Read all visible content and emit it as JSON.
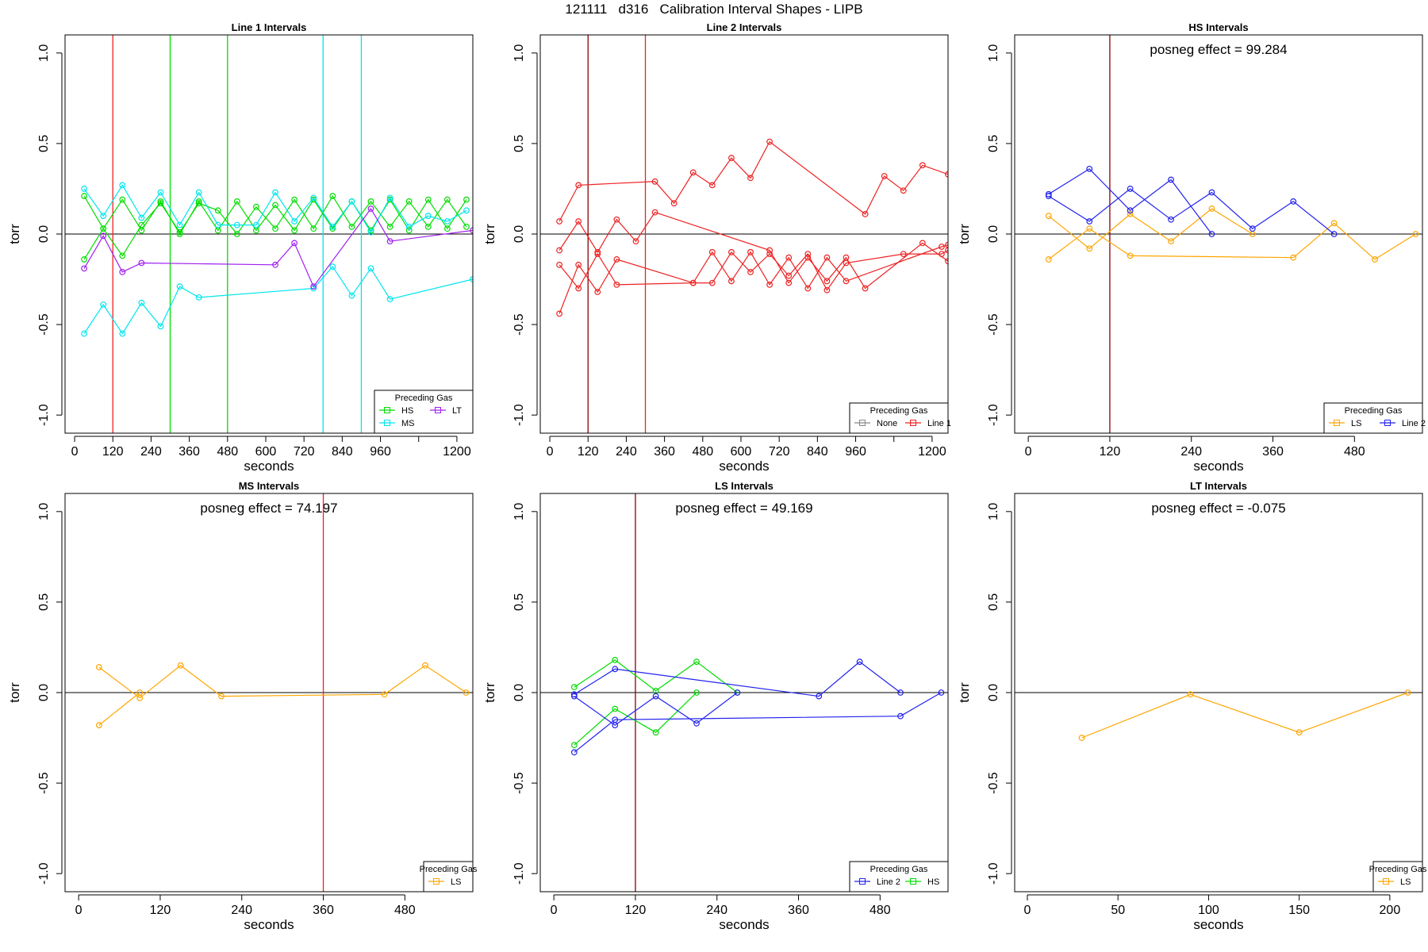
{
  "figure_title": "121111   d316   Calibration Interval Shapes - LIPB",
  "colors": {
    "HS": "#00dd00",
    "MS": "#00e5ee",
    "LT": "#a020f0",
    "Line 1": "#ee2222",
    "Line 2": "#2222ee",
    "LS": "#ffa500",
    "None": "#888888",
    "marker": "#8b0000"
  },
  "chart_data": [
    {
      "id": "line1",
      "type": "line",
      "title": "Line 1 Intervals",
      "xlabel": "seconds",
      "ylabel": "torr",
      "xlim": [
        -30,
        1250
      ],
      "ylim": [
        -1.1,
        1.1
      ],
      "xticks": [
        0,
        120,
        240,
        360,
        480,
        600,
        720,
        840,
        960,
        1080,
        1200
      ],
      "xtick_labels": [
        "0",
        "120",
        "240",
        "360",
        "480",
        "600",
        "720",
        "840",
        "960",
        "",
        "1200"
      ],
      "yticks": [
        -1.0,
        -0.5,
        0.0,
        0.5,
        1.0
      ],
      "ytick_labels": [
        "-1.0",
        "-0.5",
        "0.0",
        "0.5",
        "1.0"
      ],
      "hline": 0,
      "annotation": "",
      "vlines": [
        {
          "x": 120,
          "color": "Line 1"
        },
        {
          "x": 300,
          "color": "HS"
        },
        {
          "x": 480,
          "color": "HS"
        },
        {
          "x": 780,
          "color": "MS"
        },
        {
          "x": 900,
          "color": "MS"
        }
      ],
      "legend": {
        "title": "Preceding Gas",
        "position": "bottom-right",
        "cols": 2,
        "entries": [
          {
            "label": "HS",
            "color": "HS"
          },
          {
            "label": "LT",
            "color": "LT"
          },
          {
            "label": "MS",
            "color": "MS"
          }
        ]
      },
      "series": [
        {
          "color": "HS",
          "x": [
            30,
            90,
            150,
            210,
            270,
            330,
            390,
            450,
            510,
            570,
            630,
            690,
            750,
            810,
            870,
            930,
            990,
            1050,
            1110,
            1170,
            1230
          ],
          "y": [
            0.21,
            0.03,
            0.19,
            0.02,
            0.18,
            0.0,
            0.18,
            0.02,
            0.18,
            0.02,
            0.16,
            0.02,
            0.19,
            0.03,
            0.18,
            0.02,
            0.19,
            0.02,
            0.19,
            0.03,
            0.19
          ]
        },
        {
          "color": "HS",
          "x": [
            30,
            90,
            150,
            210,
            270,
            330,
            390,
            450,
            510,
            570,
            630,
            690,
            750,
            810,
            870,
            930,
            990,
            1050,
            1110,
            1170,
            1230
          ],
          "y": [
            -0.14,
            0.03,
            -0.12,
            0.05,
            0.17,
            0.01,
            0.17,
            0.13,
            0.0,
            0.15,
            0.03,
            0.19,
            0.03,
            0.21,
            0.04,
            0.18,
            0.04,
            0.18,
            0.04,
            0.19,
            0.04
          ]
        },
        {
          "color": "MS",
          "x": [
            30,
            90,
            150,
            210,
            270,
            330,
            390,
            450,
            510,
            570,
            630,
            690,
            750,
            810,
            870,
            930,
            990,
            1050,
            1110,
            1170,
            1230
          ],
          "y": [
            0.25,
            0.1,
            0.27,
            0.09,
            0.23,
            0.05,
            0.23,
            0.05,
            0.05,
            0.05,
            0.23,
            0.07,
            0.2,
            0.04,
            0.18,
            0.01,
            0.2,
            0.04,
            0.1,
            0.07,
            0.13
          ]
        },
        {
          "color": "MS",
          "x": [
            30,
            90,
            150,
            210,
            270,
            330,
            390,
            750,
            810,
            870,
            930,
            990,
            1250
          ],
          "y": [
            -0.55,
            -0.39,
            -0.55,
            -0.38,
            -0.51,
            -0.29,
            -0.35,
            -0.3,
            -0.18,
            -0.34,
            -0.19,
            -0.36,
            -0.25
          ]
        },
        {
          "color": "LT",
          "x": [
            30,
            90,
            150,
            210,
            630,
            690,
            750,
            930,
            990,
            1250
          ],
          "y": [
            -0.19,
            -0.01,
            -0.21,
            -0.16,
            -0.17,
            -0.05,
            -0.29,
            0.14,
            -0.04,
            0.02
          ]
        }
      ]
    },
    {
      "id": "line2",
      "type": "line",
      "title": "Line 2 Intervals",
      "xlabel": "seconds",
      "ylabel": "torr",
      "xlim": [
        -30,
        1250
      ],
      "ylim": [
        -1.1,
        1.1
      ],
      "xticks": [
        0,
        120,
        240,
        360,
        480,
        600,
        720,
        840,
        960,
        1080,
        1200
      ],
      "xtick_labels": [
        "0",
        "120",
        "240",
        "360",
        "480",
        "600",
        "720",
        "840",
        "960",
        "",
        "1200"
      ],
      "yticks": [
        -1.0,
        -0.5,
        0.0,
        0.5,
        1.0
      ],
      "ytick_labels": [
        "-1.0",
        "-0.5",
        "0.0",
        "0.5",
        "1.0"
      ],
      "hline": 0,
      "annotation": "",
      "vlines": [
        {
          "x": 120,
          "color": "marker"
        },
        {
          "x": 300,
          "color": "Line 1"
        }
      ],
      "legend": {
        "title": "Preceding Gas",
        "position": "bottom-right",
        "cols": 2,
        "entries": [
          {
            "label": "None",
            "color": "None"
          },
          {
            "label": "Line 1",
            "color": "Line 1"
          }
        ]
      },
      "series": [
        {
          "color": "Line 1",
          "x": [
            30,
            90,
            330,
            390,
            450,
            510,
            570,
            630,
            690,
            990,
            1050,
            1110,
            1170,
            1250
          ],
          "y": [
            0.07,
            0.27,
            0.29,
            0.17,
            0.34,
            0.27,
            0.42,
            0.31,
            0.51,
            0.11,
            0.32,
            0.24,
            0.38,
            0.33
          ]
        },
        {
          "color": "Line 1",
          "x": [
            30,
            90,
            150,
            210,
            270,
            330,
            690,
            750,
            810,
            870,
            930,
            990,
            1170,
            1250
          ],
          "y": [
            -0.09,
            0.07,
            -0.1,
            0.08,
            -0.04,
            0.12,
            -0.09,
            -0.27,
            -0.13,
            -0.26,
            -0.13,
            -0.3,
            -0.05,
            -0.15
          ]
        },
        {
          "color": "Line 1",
          "x": [
            30,
            90,
            150,
            210,
            450,
            510,
            570,
            630,
            690,
            750,
            810,
            870,
            930,
            1230,
            1250
          ],
          "y": [
            -0.44,
            -0.17,
            -0.32,
            -0.14,
            -0.27,
            -0.1,
            -0.26,
            -0.1,
            -0.28,
            -0.13,
            -0.3,
            -0.13,
            -0.26,
            -0.07,
            -0.06
          ]
        },
        {
          "color": "Line 1",
          "x": [
            30,
            90,
            150,
            210,
            450,
            510,
            570,
            630,
            690,
            750,
            810,
            870,
            930,
            1110,
            1230,
            1250
          ],
          "y": [
            -0.17,
            -0.3,
            -0.11,
            -0.28,
            -0.27,
            -0.27,
            -0.1,
            -0.21,
            -0.11,
            -0.23,
            -0.11,
            -0.31,
            -0.16,
            -0.11,
            -0.11,
            -0.09
          ]
        }
      ]
    },
    {
      "id": "hs",
      "type": "line",
      "title": "HS Intervals",
      "xlabel": "seconds",
      "ylabel": "torr",
      "xlim": [
        -20,
        580
      ],
      "ylim": [
        -1.1,
        1.1
      ],
      "xticks": [
        0,
        120,
        240,
        360,
        480
      ],
      "xtick_labels": [
        "0",
        "120",
        "240",
        "360",
        "480"
      ],
      "yticks": [
        -1.0,
        -0.5,
        0.0,
        0.5,
        1.0
      ],
      "ytick_labels": [
        "-1.0",
        "-0.5",
        "0.0",
        "0.5",
        "1.0"
      ],
      "hline": 0,
      "annotation": "posneg effect = 99.284",
      "vlines": [
        {
          "x": 120,
          "color": "marker"
        }
      ],
      "legend": {
        "title": "Preceding Gas",
        "position": "bottom-right",
        "cols": 2,
        "entries": [
          {
            "label": "LS",
            "color": "LS"
          },
          {
            "label": "Line 2",
            "color": "Line 2"
          }
        ]
      },
      "series": [
        {
          "color": "LS",
          "x": [
            30,
            90,
            150,
            210,
            270,
            330
          ],
          "y": [
            0.1,
            -0.08,
            0.11,
            -0.04,
            0.14,
            0.0
          ]
        },
        {
          "color": "LS",
          "x": [
            30,
            90,
            150,
            390,
            450,
            510,
            570
          ],
          "y": [
            -0.14,
            0.03,
            -0.12,
            -0.13,
            0.06,
            -0.14,
            0.0
          ]
        },
        {
          "color": "Line 2",
          "x": [
            30,
            90,
            150,
            210,
            270
          ],
          "y": [
            0.22,
            0.36,
            0.13,
            0.3,
            0.0
          ]
        },
        {
          "color": "Line 2",
          "x": [
            30,
            90,
            150,
            210,
            270,
            330,
            390,
            450
          ],
          "y": [
            0.21,
            0.07,
            0.25,
            0.08,
            0.23,
            0.03,
            0.18,
            0.0
          ]
        }
      ]
    },
    {
      "id": "ms",
      "type": "line",
      "title": "MS Intervals",
      "xlabel": "seconds",
      "ylabel": "torr",
      "xlim": [
        -20,
        580
      ],
      "ylim": [
        -1.1,
        1.1
      ],
      "xticks": [
        0,
        120,
        240,
        360,
        480
      ],
      "xtick_labels": [
        "0",
        "120",
        "240",
        "360",
        "480"
      ],
      "yticks": [
        -1.0,
        -0.5,
        0.0,
        0.5,
        1.0
      ],
      "ytick_labels": [
        "-1.0",
        "-0.5",
        "0.0",
        "0.5",
        "1.0"
      ],
      "hline": 0,
      "annotation": "posneg effect = 74.197",
      "vlines": [
        {
          "x": 360,
          "color": "Line 1"
        }
      ],
      "legend": {
        "title": "Preceding Gas",
        "position": "bottom-right",
        "cols": 1,
        "entries": [
          {
            "label": "LS",
            "color": "LS"
          }
        ]
      },
      "series": [
        {
          "color": "LS",
          "x": [
            30,
            90,
            150,
            210,
            450,
            510,
            570
          ],
          "y": [
            0.14,
            -0.03,
            0.15,
            -0.02,
            -0.01,
            0.15,
            0.0
          ]
        },
        {
          "color": "LS",
          "x": [
            30,
            90
          ],
          "y": [
            -0.18,
            0.0
          ]
        }
      ]
    },
    {
      "id": "ls",
      "type": "line",
      "title": "LS Intervals",
      "xlabel": "seconds",
      "ylabel": "torr",
      "xlim": [
        -20,
        580
      ],
      "ylim": [
        -1.1,
        1.1
      ],
      "xticks": [
        0,
        120,
        240,
        360,
        480
      ],
      "xtick_labels": [
        "0",
        "120",
        "240",
        "360",
        "480"
      ],
      "yticks": [
        -1.0,
        -0.5,
        0.0,
        0.5,
        1.0
      ],
      "ytick_labels": [
        "-1.0",
        "-0.5",
        "0.0",
        "0.5",
        "1.0"
      ],
      "hline": 0,
      "annotation": "posneg effect = 49.169",
      "vlines": [
        {
          "x": 120,
          "color": "marker"
        }
      ],
      "legend": {
        "title": "Preceding Gas",
        "position": "bottom-right",
        "cols": 2,
        "entries": [
          {
            "label": "Line 2",
            "color": "Line 2"
          },
          {
            "label": "HS",
            "color": "HS"
          }
        ]
      },
      "series": [
        {
          "color": "HS",
          "x": [
            30,
            90,
            150,
            210,
            270
          ],
          "y": [
            0.03,
            0.18,
            0.01,
            0.17,
            0.0
          ]
        },
        {
          "color": "HS",
          "x": [
            30,
            90,
            150,
            210
          ],
          "y": [
            -0.29,
            -0.09,
            -0.22,
            0.0
          ]
        },
        {
          "color": "Line 2",
          "x": [
            30,
            90,
            390,
            450,
            510
          ],
          "y": [
            -0.01,
            0.13,
            -0.02,
            0.17,
            0.0
          ]
        },
        {
          "color": "Line 2",
          "x": [
            30,
            90,
            150,
            210,
            270
          ],
          "y": [
            -0.02,
            -0.18,
            -0.02,
            -0.17,
            0.0
          ]
        },
        {
          "color": "Line 2",
          "x": [
            30,
            90,
            510,
            570
          ],
          "y": [
            -0.33,
            -0.15,
            -0.13,
            0.0
          ]
        }
      ]
    },
    {
      "id": "lt",
      "type": "line",
      "title": "LT Intervals",
      "xlabel": "seconds",
      "ylabel": "torr",
      "xlim": [
        -7,
        218
      ],
      "ylim": [
        -1.1,
        1.1
      ],
      "xticks": [
        0,
        50,
        100,
        150,
        200
      ],
      "xtick_labels": [
        "0",
        "50",
        "100",
        "150",
        "200"
      ],
      "yticks": [
        -1.0,
        -0.5,
        0.0,
        0.5,
        1.0
      ],
      "ytick_labels": [
        "-1.0",
        "-0.5",
        "0.0",
        "0.5",
        "1.0"
      ],
      "hline": 0,
      "annotation": "posneg effect = -0.075",
      "vlines": [],
      "legend": {
        "title": "Preceding Gas",
        "position": "bottom-right",
        "cols": 1,
        "entries": [
          {
            "label": "LS",
            "color": "LS"
          }
        ]
      },
      "series": [
        {
          "color": "LS",
          "x": [
            30,
            90,
            150,
            210
          ],
          "y": [
            -0.25,
            -0.01,
            -0.22,
            0.0
          ]
        }
      ]
    }
  ]
}
